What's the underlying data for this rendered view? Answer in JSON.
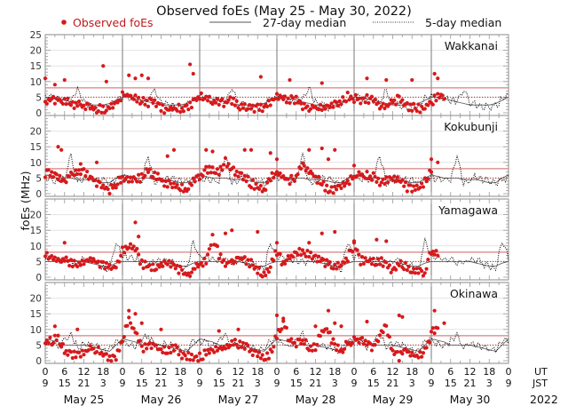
{
  "chart_data": {
    "type": "scatter",
    "title": "Observed foEs (May 25 - May 30, 2022)",
    "ylabel": "foEs (MHz)",
    "ylim": [
      -0.85,
      25
    ],
    "xlim_hours_ut": [
      0,
      144
    ],
    "legend": {
      "placement": "top",
      "observed": "Observed foEs",
      "median27": "27-day median",
      "median5": "5-day median"
    },
    "colors": {
      "observed": "#d7191c",
      "median27": "#555555",
      "median5": "#111111",
      "reference": "#d98080"
    },
    "yticks_top_panel": [
      "0",
      "5",
      "10",
      "15",
      "20",
      "25"
    ],
    "yticks_other_panels": [
      "0",
      "5",
      "10",
      "15",
      "20"
    ],
    "xticks_ut": [
      "0",
      "6",
      "12",
      "18",
      "0",
      "6",
      "12",
      "18",
      "0",
      "6",
      "12",
      "18",
      "0",
      "6",
      "12",
      "18",
      "0",
      "6",
      "12",
      "18",
      "0",
      "6",
      "12",
      "18",
      "0"
    ],
    "xticks_jst": [
      "9",
      "15",
      "21",
      "3",
      "9",
      "15",
      "21",
      "3",
      "9",
      "15",
      "21",
      "3",
      "9",
      "15",
      "21",
      "3",
      "9",
      "15",
      "21",
      "3",
      "9",
      "15",
      "21",
      "3",
      "9"
    ],
    "x_row_labels": {
      "ut": "UT",
      "jst": "JST"
    },
    "dates": [
      "May 25",
      "May 26",
      "May 27",
      "May 28",
      "May 29",
      "May 30"
    ],
    "year": "2022",
    "reference_lines": {
      "solid": 8,
      "dotted": 5
    },
    "sample_step_hours": 2,
    "panels": [
      {
        "station": "Wakkanai",
        "observed": [
          4,
          5,
          5,
          4.5,
          3.5,
          3,
          3,
          2.5,
          2,
          2,
          2.5,
          3.5,
          6,
          6.5,
          5,
          4.5,
          4,
          4.5,
          2,
          2,
          2,
          2,
          2.5,
          4,
          6,
          5,
          4.5,
          4,
          4,
          4.5,
          3,
          2.5,
          2,
          2,
          2.5,
          4,
          6,
          5.5,
          5,
          5,
          3,
          2.5,
          2.5,
          2.5,
          2.5,
          3,
          4.5,
          6,
          5.5,
          5,
          5,
          4.5,
          3,
          3,
          4.5,
          5,
          3,
          2.5,
          2,
          2.5,
          4,
          6,
          6
        ],
        "observed_outliers": [
          [
            0,
            11
          ],
          [
            3,
            9
          ],
          [
            6,
            10.5
          ],
          [
            18,
            15
          ],
          [
            19,
            10
          ],
          [
            26,
            12
          ],
          [
            28,
            11
          ],
          [
            30,
            12
          ],
          [
            32,
            11
          ],
          [
            45,
            15.5
          ],
          [
            46,
            12.5
          ],
          [
            67,
            11.5
          ],
          [
            76,
            10.5
          ],
          [
            86,
            9.5
          ],
          [
            100,
            11
          ],
          [
            106,
            10.5
          ],
          [
            114,
            10.5
          ],
          [
            121,
            12.5
          ],
          [
            122,
            11
          ]
        ],
        "median27_daily": [
          5,
          5,
          4.5,
          4,
          3.5,
          3,
          2.5,
          2.5,
          2.5,
          2.5,
          3,
          4
        ],
        "median5_daily": [
          6,
          5.5,
          5,
          4.5,
          4.5,
          8,
          4,
          3,
          2.5,
          2.5,
          3,
          5
        ]
      },
      {
        "station": "Kokubunji",
        "observed": [
          7,
          7.5,
          6,
          5,
          7,
          8,
          8,
          6,
          4,
          3,
          2,
          4,
          5.5,
          5,
          5,
          6,
          8,
          7,
          5,
          4,
          3,
          2.5,
          2,
          4.5,
          6,
          8,
          9,
          7,
          11,
          8,
          7,
          6,
          4,
          3,
          2,
          6,
          7,
          6,
          5,
          6,
          10,
          8,
          6,
          4,
          2,
          2,
          2.5,
          4,
          6,
          7,
          6.5,
          6,
          4,
          5,
          6,
          5,
          3,
          2,
          2,
          5,
          8
        ],
        "observed_outliers": [
          [
            4,
            15
          ],
          [
            5,
            14
          ],
          [
            11,
            9.5
          ],
          [
            16,
            10
          ],
          [
            38,
            12
          ],
          [
            40,
            14
          ],
          [
            50,
            14
          ],
          [
            52,
            13.5
          ],
          [
            62,
            14
          ],
          [
            64,
            14
          ],
          [
            70,
            13
          ],
          [
            72,
            11
          ],
          [
            82,
            14
          ],
          [
            86,
            14.5
          ],
          [
            88,
            11
          ],
          [
            90,
            14
          ],
          [
            96,
            9
          ],
          [
            120,
            11
          ],
          [
            122,
            10
          ]
        ],
        "median27_daily": [
          6,
          5.5,
          5,
          5,
          5,
          4.5,
          4.5,
          4.5,
          4,
          3.5,
          3.5,
          5
        ],
        "median5_daily": [
          6,
          5,
          5,
          5,
          13,
          4,
          5,
          6,
          5,
          5,
          4,
          5
        ]
      },
      {
        "station": "Yamagawa",
        "observed": [
          8,
          7,
          6,
          6,
          5,
          5,
          6,
          6,
          5.5,
          5,
          4,
          4,
          9,
          10,
          10,
          5,
          4.5,
          4,
          5,
          5,
          4,
          3,
          1.5,
          3,
          5,
          6,
          13,
          8,
          5,
          6,
          7,
          6,
          5,
          3,
          1,
          4,
          9,
          5,
          7,
          9,
          9,
          8,
          7,
          6,
          5,
          4,
          5,
          7,
          11,
          6,
          6,
          5.5,
          6,
          5,
          3,
          5,
          4,
          3,
          2.5,
          2,
          9,
          8
        ],
        "observed_outliers": [
          [
            6,
            11
          ],
          [
            28,
            17.5
          ],
          [
            29,
            13
          ],
          [
            56,
            14
          ],
          [
            58,
            15
          ],
          [
            66,
            14.5
          ],
          [
            72,
            11
          ],
          [
            82,
            11
          ],
          [
            86,
            14
          ],
          [
            90,
            14.5
          ],
          [
            96,
            11
          ],
          [
            103,
            12
          ],
          [
            106,
            11.5
          ]
        ],
        "median27_daily": [
          5,
          5,
          5,
          5,
          5,
          5,
          5,
          4.5,
          4,
          3.5,
          3.5,
          4.5
        ],
        "median5_daily": [
          7,
          7,
          6,
          6,
          5.5,
          5.5,
          6,
          6,
          5,
          4,
          3,
          12
        ]
      },
      {
        "station": "Okinawa",
        "observed": [
          7,
          7,
          8,
          4,
          3,
          2.5,
          3,
          5,
          4,
          3,
          2,
          2,
          7,
          14,
          10,
          5,
          5,
          6,
          4,
          4,
          5,
          3,
          2,
          2,
          2,
          3,
          4,
          4.5,
          5,
          7,
          6,
          5,
          4,
          2.5,
          1,
          3,
          9,
          13,
          7,
          6,
          7,
          5,
          5,
          10,
          10,
          5,
          4,
          6,
          8,
          7,
          6,
          5,
          9,
          12,
          3,
          2,
          4,
          3,
          2,
          4,
          9,
          12
        ],
        "observed_outliers": [
          [
            3,
            11
          ],
          [
            10,
            10
          ],
          [
            26,
            16
          ],
          [
            28,
            15
          ],
          [
            30,
            12
          ],
          [
            36,
            10
          ],
          [
            54,
            9.5
          ],
          [
            60,
            10
          ],
          [
            72,
            14.5
          ],
          [
            74,
            13.5
          ],
          [
            84,
            11
          ],
          [
            88,
            16
          ],
          [
            90,
            12
          ],
          [
            92,
            11
          ],
          [
            100,
            12.5
          ],
          [
            110,
            14.5
          ],
          [
            111,
            14
          ],
          [
            121,
            16
          ],
          [
            124,
            12
          ]
        ],
        "median27_daily": [
          7,
          6.5,
          6,
          5,
          5,
          5,
          5,
          4.5,
          4,
          3.5,
          3,
          5
        ],
        "median5_daily": [
          7,
          6,
          5,
          7,
          9,
          5,
          6,
          6,
          5,
          4,
          4,
          7
        ]
      }
    ]
  }
}
